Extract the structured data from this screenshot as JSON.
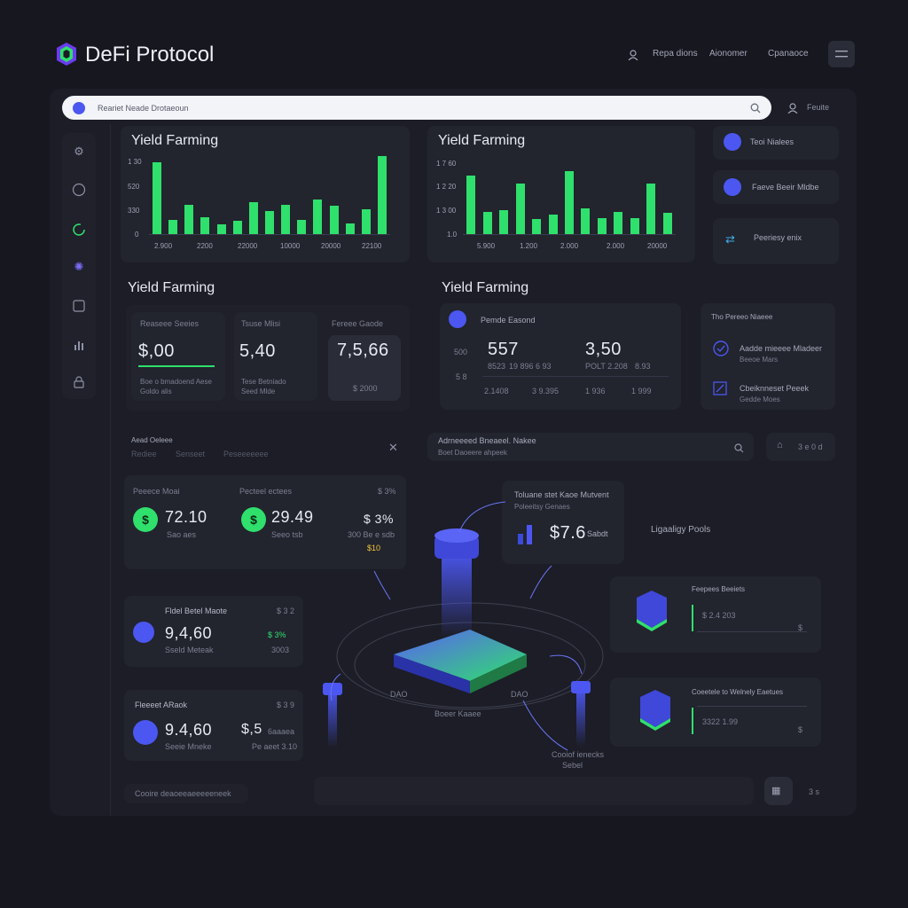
{
  "app": {
    "title": "DeFi Protocol"
  },
  "topnav": {
    "items": [
      "Repa dions",
      "Aionomer",
      "Cpanaoce"
    ]
  },
  "search": {
    "value": "Reariet Neade Drotaeoun",
    "side_label": "Feuite"
  },
  "charts": [
    {
      "title": "Yield Farming",
      "y_ticks": [
        "1 30",
        "520",
        "330",
        "0"
      ],
      "x_ticks": [
        "2.900",
        "2200",
        "22000",
        "10000",
        "20000",
        "22100"
      ],
      "bars": [
        0.92,
        0.18,
        0.37,
        0.22,
        0.12,
        0.17,
        0.41,
        0.29,
        0.37,
        0.18,
        0.44,
        0.36,
        0.14,
        0.32,
        1.0
      ]
    },
    {
      "title": "Yield Farming",
      "y_ticks": [
        "1 7 60",
        "1 2 20",
        "1 3 00",
        "1.0"
      ],
      "x_ticks": [
        "5.900",
        "1.200",
        "2.000",
        "2.000",
        "20000"
      ],
      "bars": [
        0.78,
        0.3,
        0.32,
        0.68,
        0.2,
        0.26,
        0.84,
        0.35,
        0.22,
        0.3,
        0.21,
        0.68,
        0.28
      ]
    }
  ],
  "right_top": [
    {
      "label": "Teoi Nialees"
    },
    {
      "label": "Faeve Beeir Mldbe"
    },
    {
      "label": "Peeriesy enix"
    }
  ],
  "yield_left": {
    "title": "Yield Farming",
    "cards": [
      {
        "label": "Reaseee Seeies",
        "value": "$,00",
        "sub1": "Boe o bmadoend Aese",
        "sub2": "Goldo alis"
      },
      {
        "label": "Tsuse Mlisi",
        "value": "5,40",
        "sub1": "Tese Betniado",
        "sub2": "Seed Mlde"
      },
      {
        "label": "Fereee Gaode",
        "value": "7,5,66",
        "sub1": "$ 2000"
      }
    ]
  },
  "yield_right": {
    "title": "Yield Farming",
    "label": "Pemde Easond",
    "side_val1": "500",
    "side_val2": "5 8",
    "value1": "557",
    "value2": "3,50",
    "row1": [
      "8523",
      "19 896",
      "6 93",
      "POLT 2.208",
      "8.93"
    ],
    "row2": [
      "2.1408",
      "3 9.395",
      "1 936",
      "1 999"
    ]
  },
  "right_list": {
    "title": "Tho Pereeo Niaeee",
    "items": [
      {
        "title": "Aadde mieeee Mladeer",
        "sub": "Beeoe Mars"
      },
      {
        "title": "Cbeiknneset Peeek",
        "sub": "Gedde Moes"
      }
    ]
  },
  "filter": {
    "title": "Aead Oeleee",
    "tabs": [
      "Rediee",
      "Senseet",
      "Peseeeeeee"
    ]
  },
  "search2": {
    "value": "Adrneeeed Bneaeel. Nakee",
    "sub": "Boet Daoeere ahpeek",
    "side": "3 e 0 d"
  },
  "left_stats": {
    "h1": "Peeece Moai",
    "h2": "Pecteel ectees",
    "h3": "$ 3%",
    "v1": "72.10",
    "s1": "Sao aes",
    "v2": "29.49",
    "s2": "Seeo tsb",
    "v3": "$ 3%",
    "s3": "300 Be e sdb",
    "s4": "$10"
  },
  "left_mid": {
    "title": "Fldel Betel Maote",
    "tag": "$ 3 2",
    "value": "9,4,60",
    "sub": "Sseld Meteak",
    "right_val": "$ 3%",
    "right_sub": "3003"
  },
  "left_bottom": {
    "title": "Fleeeet ARaok",
    "tag": "$ 3 9",
    "value": "9.4,60",
    "sub": "Seeie Mneke",
    "right_val": "$,5",
    "right_sub1": "6aaaea",
    "right_sub2": "Pe aeet 3.10"
  },
  "tvl": {
    "title": "Toluane stet Kaoe Mutvent",
    "sub": "Poleeitsy Genaes",
    "value": "$7.6",
    "unit": "Sabdt"
  },
  "liquidity_label": "Ligaaligy Pools",
  "diagram_labels": {
    "left": "DAO",
    "right": "DAO",
    "center": "Boeer Kaaee",
    "bottom1": "Cooiof ienecks",
    "bottom2": "Sebel"
  },
  "pools": [
    {
      "title": "Feepees Beeiets",
      "value": "$ 2.4 203",
      "tag": "$"
    },
    {
      "title": "Coeetele to Welnely Eaetues",
      "value": "3322 1.99",
      "tag": "$"
    }
  ],
  "footer": {
    "left": "Cooire deaoeeaeeeeeneek",
    "right": "3 s"
  },
  "colors": {
    "accent_green": "#2fe06c",
    "accent_blue": "#4b57f0",
    "bg": "#16171f",
    "panel": "#1c1d26",
    "card": "#22242e"
  },
  "icons": [
    "user-icon",
    "menu-icon",
    "search-icon",
    "gear-icon",
    "chart-icon",
    "wallet-icon",
    "shield-icon",
    "layers-icon",
    "close-icon",
    "cube-icon"
  ]
}
